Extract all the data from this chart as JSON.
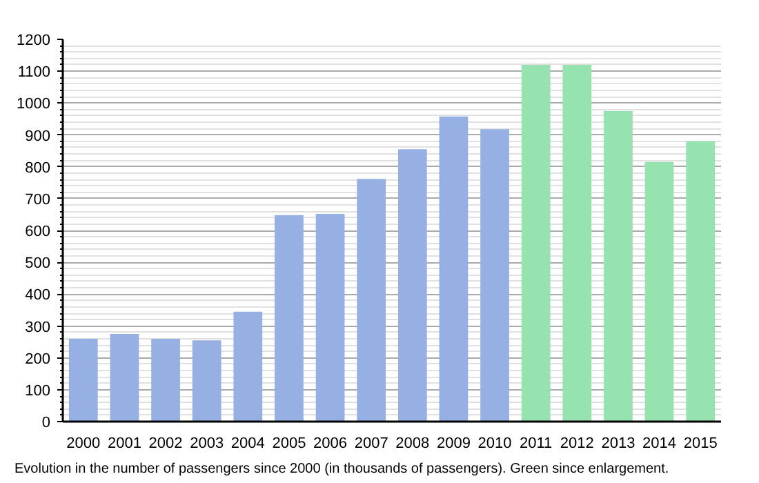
{
  "chart_data": {
    "type": "bar",
    "categories": [
      "2000",
      "2001",
      "2002",
      "2003",
      "2004",
      "2005",
      "2006",
      "2007",
      "2008",
      "2009",
      "2010",
      "2011",
      "2012",
      "2013",
      "2014",
      "2015"
    ],
    "values": [
      260,
      275,
      260,
      255,
      345,
      648,
      652,
      762,
      855,
      958,
      918,
      1120,
      1120,
      975,
      815,
      880
    ],
    "colors": [
      "#97b0e3",
      "#97b0e3",
      "#97b0e3",
      "#97b0e3",
      "#97b0e3",
      "#97b0e3",
      "#97b0e3",
      "#97b0e3",
      "#97b0e3",
      "#97b0e3",
      "#97b0e3",
      "#96e3b0",
      "#96e3b0",
      "#96e3b0",
      "#96e3b0",
      "#96e3b0"
    ],
    "ylim": [
      0,
      1200
    ],
    "yticks": [
      0,
      100,
      200,
      300,
      400,
      500,
      600,
      700,
      800,
      900,
      1000,
      1100,
      1200
    ],
    "grid": "y",
    "annotations": [
      "Evolution in the number of passengers since 2000 (in thousands of passengers). Green since enlargement."
    ]
  }
}
